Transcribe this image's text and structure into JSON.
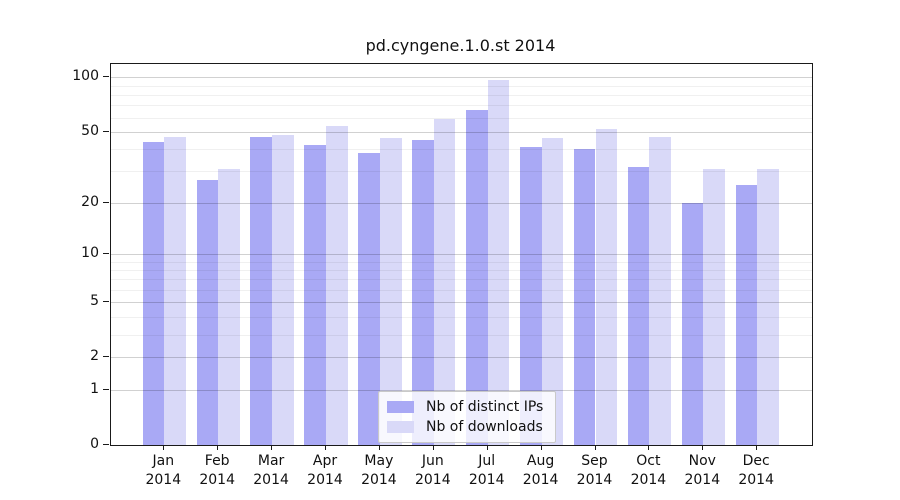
{
  "chart_data": {
    "type": "bar",
    "title": "pd.cyngene.1.0.st 2014",
    "year_label": "2014",
    "months": [
      "Jan",
      "Feb",
      "Mar",
      "Apr",
      "May",
      "Jun",
      "Jul",
      "Aug",
      "Sep",
      "Oct",
      "Nov",
      "Dec"
    ],
    "series": [
      {
        "name": "Nb of distinct IPs",
        "color": "#a9a9f5",
        "values": [
          44,
          27,
          47,
          42,
          38,
          45,
          66,
          41,
          40,
          32,
          20,
          25
        ]
      },
      {
        "name": "Nb of downloads",
        "color": "#d9d9f8",
        "values": [
          47,
          31,
          48,
          54,
          46,
          59,
          97,
          46,
          52,
          47,
          31,
          31
        ]
      }
    ],
    "y_axis": {
      "scale": "log10(value+1)",
      "major_ticks": [
        0,
        1,
        2,
        5,
        10,
        20,
        50,
        100
      ],
      "minor_ticks": [
        3,
        4,
        6,
        7,
        8,
        9,
        30,
        40,
        60,
        70,
        80,
        90
      ],
      "ylim": [
        0,
        119
      ]
    },
    "x_axis": {
      "tick_label_lines": 2
    },
    "grid": "on",
    "legend_position": "bottom-center"
  },
  "colors": {
    "background": "#ffffff",
    "axis_frame": "#1a1a1a",
    "major_grid": "#d1d1d1",
    "minor_grid": "#efefef",
    "bar_distinct_ips": "#a9a9f5",
    "bar_downloads": "#d9d9f8"
  }
}
